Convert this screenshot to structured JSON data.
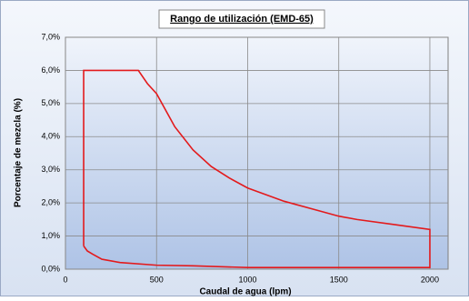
{
  "chart_data": {
    "type": "line",
    "title": "Rango de utilización (EMD-65)",
    "x_label": "Caudal de agua (lpm)",
    "y_label": "Porcentaje de mezcla (%)",
    "x": [
      100,
      100,
      400,
      450,
      500,
      600,
      700,
      800,
      900,
      1000,
      1200,
      1400,
      1500,
      1600,
      1800,
      2000,
      2000,
      1500,
      1000,
      700,
      500,
      300,
      200,
      150,
      120,
      100
    ],
    "series": [
      {
        "color": "#e31a1c",
        "values": [
          0.7,
          6,
          6,
          5.6,
          5.3,
          4.3,
          3.6,
          3.1,
          2.75,
          2.45,
          2.05,
          1.75,
          1.6,
          1.5,
          1.35,
          1.2,
          0.05,
          0.05,
          0.05,
          0.1,
          0.12,
          0.2,
          0.3,
          0.45,
          0.55,
          0.7
        ]
      }
    ],
    "xlim": [
      0,
      2100
    ],
    "xticks": [
      0,
      500,
      1000,
      1500,
      2000
    ],
    "ylim": [
      0,
      7
    ],
    "yticks": [
      {
        "value": 0,
        "label": "0,0%"
      },
      {
        "value": 1,
        "label": "1,0%"
      },
      {
        "value": 2,
        "label": "2,0%"
      },
      {
        "value": 3,
        "label": "3,0%"
      },
      {
        "value": 4,
        "label": "4,0%"
      },
      {
        "value": 5,
        "label": "5,0%"
      },
      {
        "value": 6,
        "label": "6,0%"
      },
      {
        "value": 7,
        "label": "7,0%"
      }
    ],
    "grid": true
  }
}
